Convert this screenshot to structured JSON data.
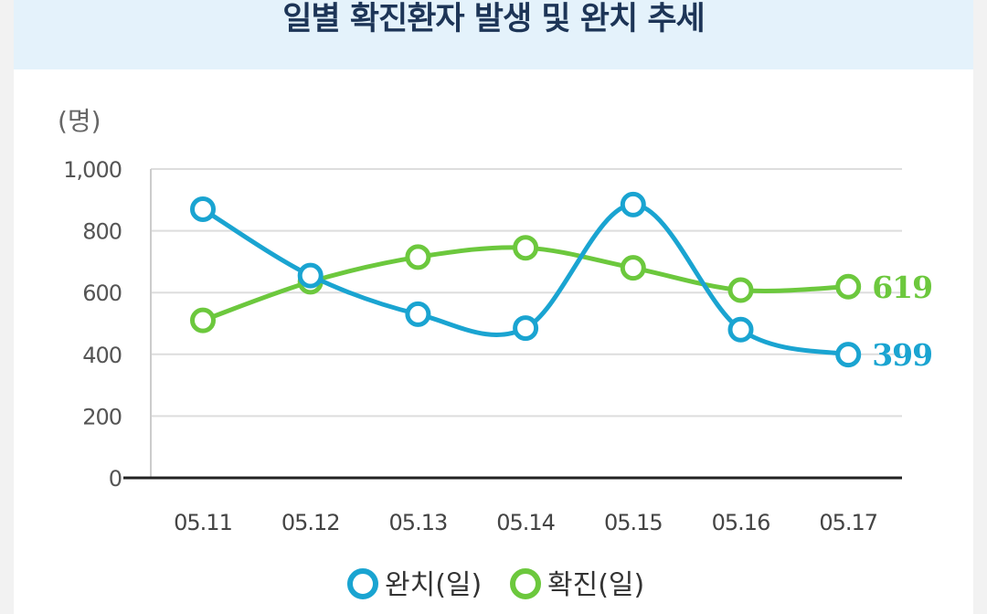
{
  "chart_data": {
    "type": "line",
    "title": "일별 확진환자 발생 및 완치 추세",
    "ylabel": "(명)",
    "xlabel": "",
    "ylim": [
      0,
      1000
    ],
    "yticks": [
      "0",
      "200",
      "400",
      "600",
      "800",
      "1,000"
    ],
    "ytick_values": [
      0,
      200,
      400,
      600,
      800,
      1000
    ],
    "categories": [
      "05.11",
      "05.12",
      "05.13",
      "05.14",
      "05.15",
      "05.16",
      "05.17"
    ],
    "series": [
      {
        "name": "완치(일)",
        "color": "#1aa4d1",
        "values": [
          870,
          655,
          530,
          485,
          885,
          480,
          399
        ],
        "end_label": "399"
      },
      {
        "name": "확진(일)",
        "color": "#6cc83d",
        "values": [
          510,
          635,
          715,
          745,
          680,
          608,
          619
        ],
        "end_label": "619"
      }
    ],
    "legend_position": "bottom-center",
    "grid": true
  }
}
